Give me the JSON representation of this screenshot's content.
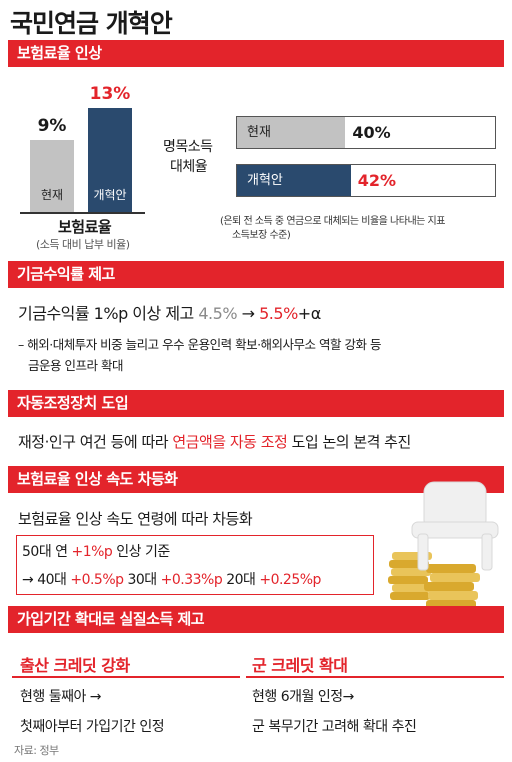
{
  "title": "국민연금 개혁안",
  "s1": {
    "header": "보험료율 인상",
    "chart_data": {
      "type": "bar",
      "categories": [
        "현재",
        "개혁안"
      ],
      "values": [
        9,
        13
      ],
      "value_labels": [
        "9%",
        "13%"
      ],
      "xlabel": "보험료율",
      "xlabel_sub": "(소득 대비 납부 비율)",
      "ylim": [
        0,
        14
      ]
    },
    "rate_label_1": "명목소득",
    "rate_label_2": "대체율",
    "replacement": {
      "type": "bar",
      "categories": [
        "현재",
        "개혁안"
      ],
      "values": [
        40,
        42
      ],
      "value_labels": [
        "40%",
        "42%"
      ]
    },
    "note_1": "(은퇴 전 소득 중 연금으로 대체되는 비율을 나타내는 지표",
    "note_2": "소득보장 수준)"
  },
  "s2": {
    "header": "기금수익률 제고",
    "line_main": "기금수익률 1%p 이상 제고",
    "from": "4.5%",
    "arrow": "→",
    "to": "5.5%",
    "plus": "+α",
    "detail_1": "– 해외·대체투자 비중 늘리고 우수 운용인력 확보·해외사무소 역할 강화 등",
    "detail_2": "금운용 인프라 확대"
  },
  "s3": {
    "header": "자동조정장치 도입",
    "line_a": "재정·인구 여건 등에 따라",
    "line_b": "연금액을 자동 조정",
    "line_c": "도입 논의 본격 추진"
  },
  "s4": {
    "header": "보험료율 인상 속도 차등화",
    "line_main": "보험료율 인상 속도 연령에 따라 차등화",
    "base_a": "50대 연",
    "base_b": "+1%p",
    "base_c": "인상 기준",
    "arrow": "→",
    "age40": "40대",
    "rate40": "+0.5%p",
    "age30": "30대",
    "rate30": "+0.33%p",
    "age20": "20대",
    "rate20": "+0.25%p"
  },
  "s5": {
    "header": "가입기간 확대로 실질소득 제고",
    "left_title": "출산 크레딧 강화",
    "left_1": "현행 둘째아 →",
    "left_2": "첫째아부터 가입기간  인정",
    "right_title": "군 크레딧 확대",
    "right_1": "현행 6개월 인정→",
    "right_2": "군 복무기간 고려해 확대 추진"
  },
  "source": "자료: 정부",
  "colors": {
    "red": "#e3242b",
    "navy": "#2a4a6e",
    "gray": "#c2c2c2",
    "gold": "#e2b53a"
  }
}
